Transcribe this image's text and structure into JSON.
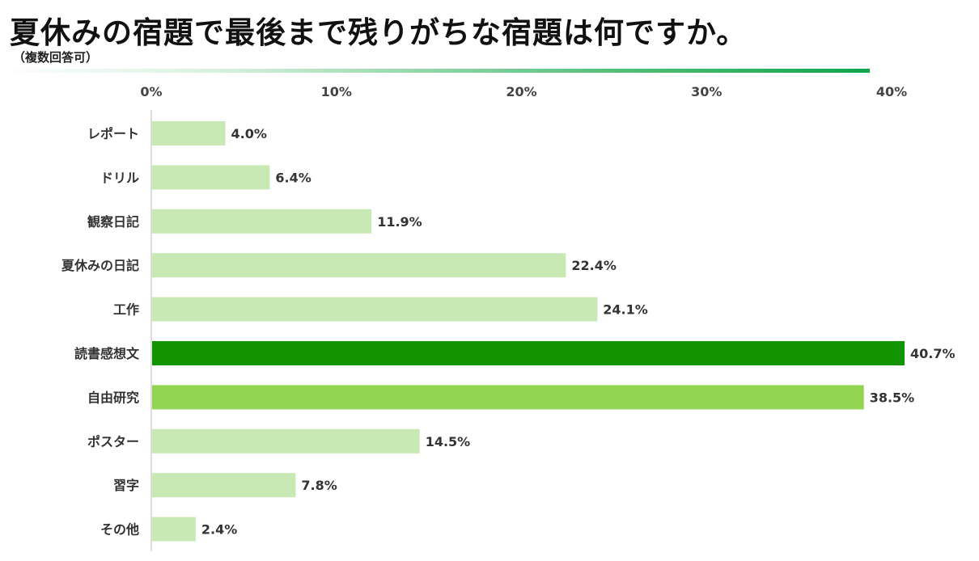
{
  "title": "夏休みの宿題で最後まで残りがちな宿題は何ですか。",
  "subtitle": "（複数回答可）",
  "colors": {
    "normal": "#c8e8b4",
    "highlight_top": "#129400",
    "highlight_second": "#93d453",
    "accent": "#0fa64a"
  },
  "chart_data": {
    "type": "bar",
    "orientation": "horizontal",
    "title": "夏休みの宿題で最後まで残りがちな宿題は何ですか。",
    "subtitle": "（複数回答可）",
    "xlim": [
      0,
      40
    ],
    "x_ticks": [
      0,
      10,
      20,
      30,
      40
    ],
    "x_tick_labels": [
      "0%",
      "10%",
      "20%",
      "30%",
      "40%"
    ],
    "x_axis_position": "top",
    "grid": false,
    "categories": [
      "レポート",
      "ドリル",
      "観察日記",
      "夏休みの日記",
      "工作",
      "読書感想文",
      "自由研究",
      "ポスター",
      "習字",
      "その他"
    ],
    "values": [
      4.0,
      6.4,
      11.9,
      22.4,
      24.1,
      40.7,
      38.5,
      14.5,
      7.8,
      2.4
    ],
    "value_labels": [
      "4.0%",
      "6.4%",
      "11.9%",
      "22.4%",
      "24.1%",
      "40.7%",
      "38.5%",
      "14.5%",
      "7.8%",
      "2.4%"
    ],
    "bar_colors": [
      "#c8e8b4",
      "#c8e8b4",
      "#c8e8b4",
      "#c8e8b4",
      "#c8e8b4",
      "#129400",
      "#93d453",
      "#c8e8b4",
      "#c8e8b4",
      "#c8e8b4"
    ]
  }
}
